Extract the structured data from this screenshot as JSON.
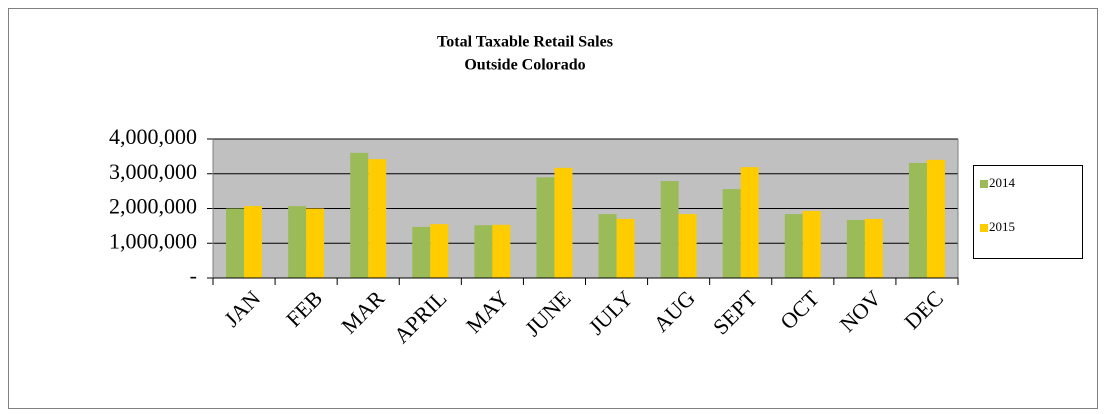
{
  "chart_data": {
    "type": "bar",
    "title": "Total Taxable Retail Sales",
    "subtitle": "Outside Colorado",
    "categories": [
      "JAN",
      "FEB",
      "MAR",
      "APRIL",
      "MAY",
      "JUNE",
      "JULY",
      "AUG",
      "SEPT",
      "OCT",
      "NOV",
      "DEC"
    ],
    "series": [
      {
        "name": "2014",
        "color": "#9bbb59",
        "values": [
          2000000,
          2070000,
          3600000,
          1470000,
          1520000,
          2900000,
          1840000,
          2790000,
          2560000,
          1840000,
          1670000,
          3310000
        ]
      },
      {
        "name": "2015",
        "color": "#ffcc00",
        "values": [
          2070000,
          2000000,
          3420000,
          1550000,
          1530000,
          3170000,
          1700000,
          1840000,
          3190000,
          1930000,
          1700000,
          3400000
        ]
      }
    ],
    "ylim": [
      0,
      4000000
    ],
    "yticks": [
      {
        "value": 0,
        "label": "-"
      },
      {
        "value": 1000000,
        "label": "1,000,000"
      },
      {
        "value": 2000000,
        "label": "2,000,000"
      },
      {
        "value": 3000000,
        "label": "3,000,000"
      },
      {
        "value": 4000000,
        "label": "4,000,000"
      }
    ],
    "grid": true,
    "plot_background": "#c0c0c0",
    "legend": "right"
  }
}
